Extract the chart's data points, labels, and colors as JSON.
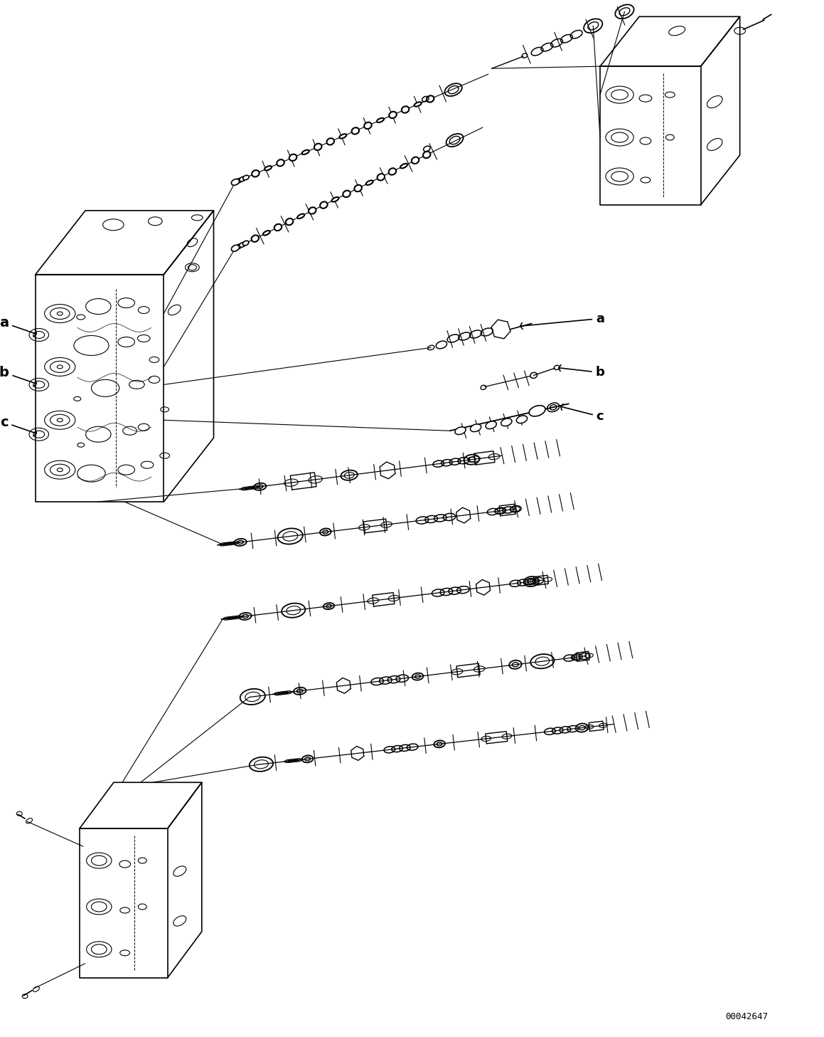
{
  "figsize": [
    11.59,
    14.57
  ],
  "dpi": 100,
  "bg": "#ffffff",
  "part_number": "00042647",
  "xlim": [
    0,
    1159
  ],
  "ylim": [
    0,
    1457
  ]
}
